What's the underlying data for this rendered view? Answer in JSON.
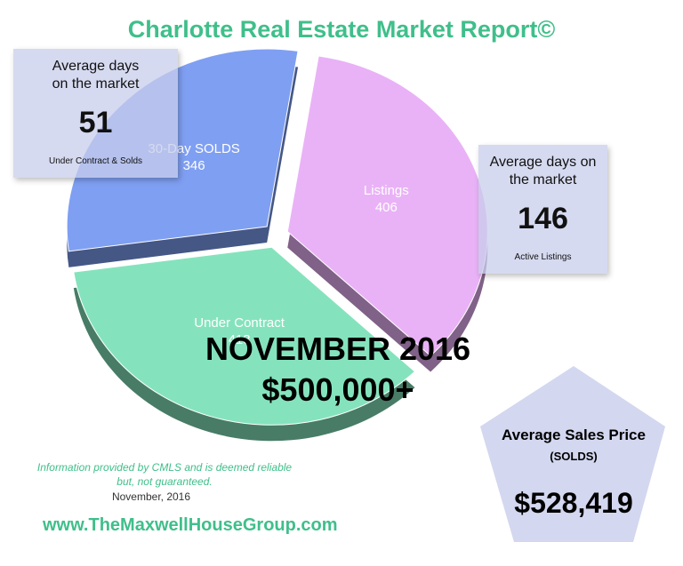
{
  "chart_data": {
    "type": "pie",
    "title": "Charlotte Real Estate Market Report©",
    "categories": [
      "30-Day SOLDS",
      "Listings",
      "Under Contract"
    ],
    "values": [
      346,
      406,
      413
    ],
    "colors": [
      "#7f9ff2",
      "#e9b2f6",
      "#84e3bd"
    ],
    "headline": "NOVEMBER 2016",
    "price_range": "$500,000+",
    "callouts": [
      {
        "heading": "Average days on the market",
        "value": 51,
        "note": "Under Contract & Solds"
      },
      {
        "heading": "Average days on the market",
        "value": 146,
        "note": "Active Listings"
      }
    ],
    "average_price": {
      "heading": "Average Sales Price",
      "subheading": "(SOLDS)",
      "value": "$528,419"
    },
    "disclaimer": "Information provided by CMLS and is deemed reliable but, not guaranteed.",
    "disclaimer_date": "November, 2016",
    "website": "www.TheMaxwellHouseGroup.com"
  }
}
